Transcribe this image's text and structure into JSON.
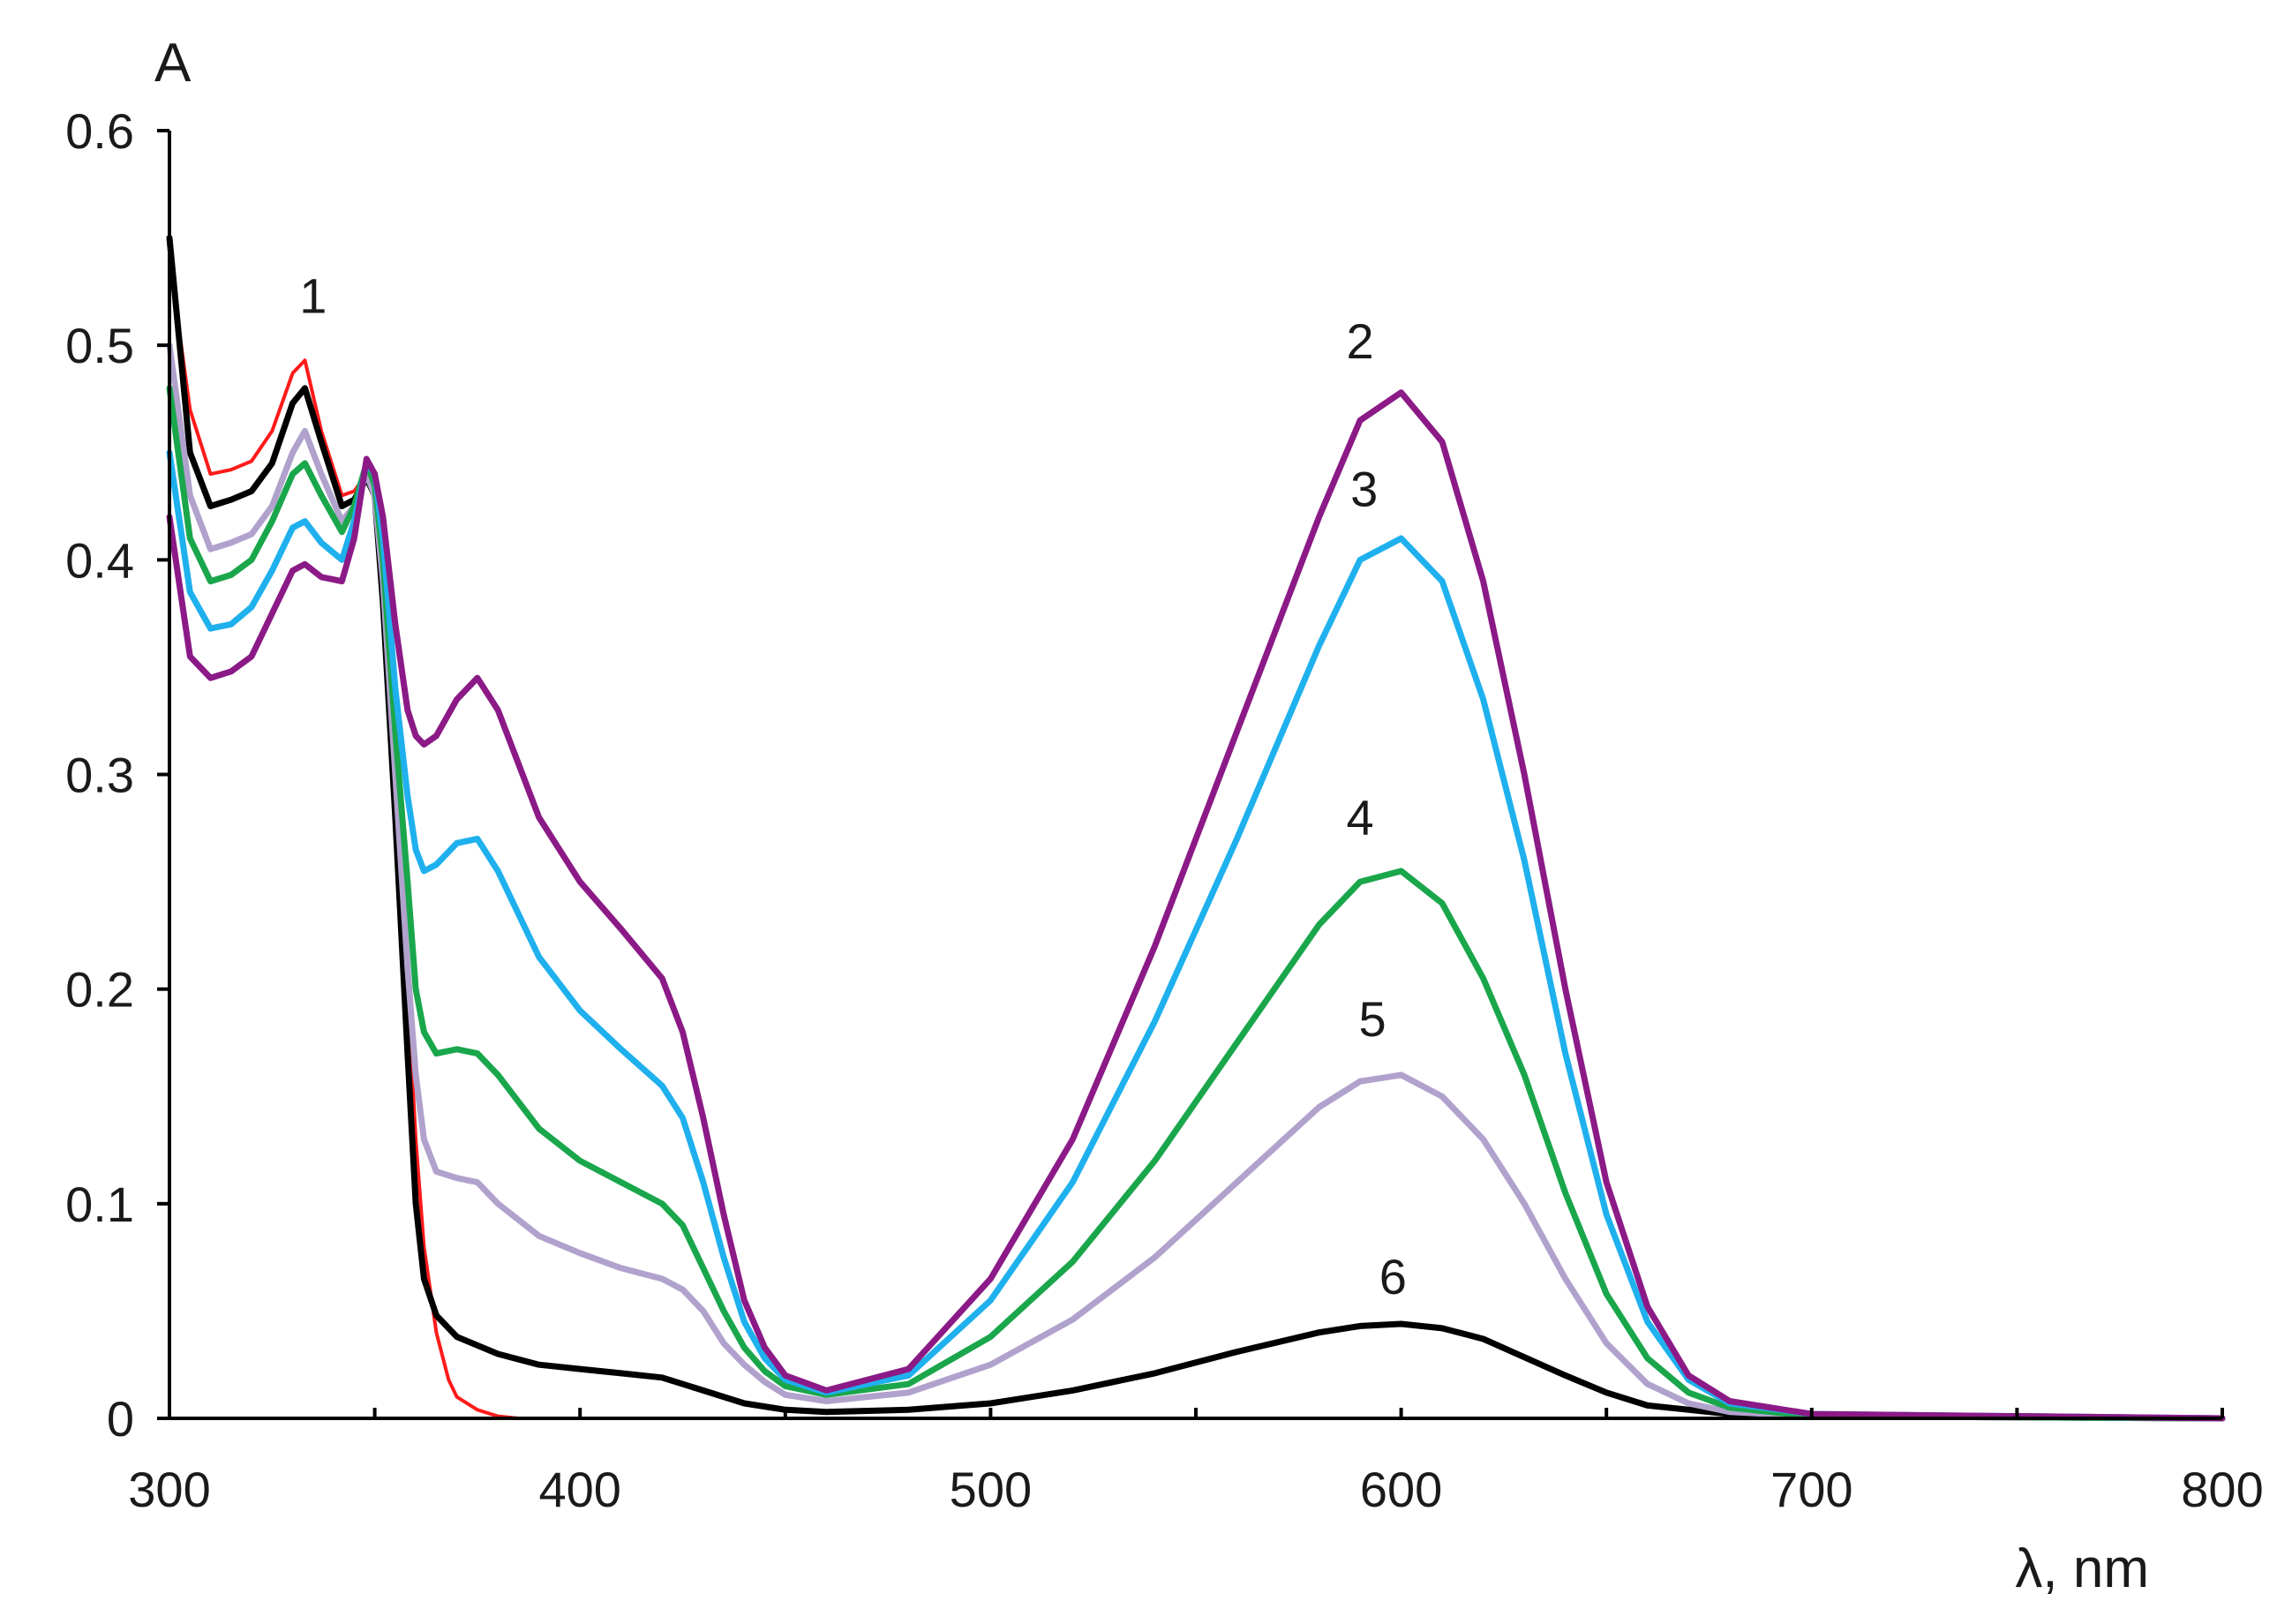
{
  "chart_data": {
    "type": "line",
    "title": "",
    "xlabel": "λ, nm",
    "ylabel": "A",
    "xlim": [
      300,
      800
    ],
    "ylim": [
      0,
      0.6
    ],
    "x_ticks": [
      300,
      400,
      500,
      600,
      700,
      800
    ],
    "x_tick_labels": [
      "300",
      "400",
      "500",
      "600",
      "700",
      "800"
    ],
    "x_minor_ticks": [
      350,
      450,
      550,
      650,
      750
    ],
    "y_ticks": [
      0,
      0.1,
      0.2,
      0.3,
      0.4,
      0.5,
      0.6
    ],
    "y_tick_labels": [
      "0",
      "0.1",
      "0.2",
      "0.3",
      "0.4",
      "0.5",
      "0.6"
    ],
    "grid": false,
    "legend": "none",
    "series": [
      {
        "name": "1",
        "color": "#ff1a1a",
        "label_at": [
          335,
          0.515
        ],
        "x": [
          300,
          305,
          310,
          315,
          320,
          325,
          330,
          333,
          337,
          342,
          345,
          348,
          350,
          352,
          355,
          358,
          360,
          362,
          365,
          368,
          370,
          375,
          380,
          385,
          400,
          500,
          600,
          700,
          800
        ],
        "y": [
          0.54,
          0.47,
          0.44,
          0.442,
          0.446,
          0.46,
          0.487,
          0.493,
          0.46,
          0.43,
          0.432,
          0.44,
          0.435,
          0.39,
          0.3,
          0.2,
          0.13,
          0.08,
          0.04,
          0.018,
          0.01,
          0.004,
          0.001,
          0.0,
          0.0,
          0.0,
          0.0,
          0.0,
          0.0
        ]
      },
      {
        "name": "6",
        "color": "#000000",
        "label_at": [
          598,
          0.058
        ],
        "x": [
          300,
          305,
          310,
          315,
          320,
          325,
          330,
          333,
          337,
          342,
          345,
          348,
          350,
          352,
          355,
          358,
          360,
          362,
          365,
          370,
          380,
          390,
          400,
          410,
          420,
          430,
          440,
          450,
          460,
          480,
          500,
          520,
          540,
          560,
          580,
          590,
          600,
          610,
          620,
          640,
          650,
          660,
          680,
          700,
          800
        ],
        "y": [
          0.55,
          0.45,
          0.425,
          0.428,
          0.432,
          0.445,
          0.473,
          0.48,
          0.455,
          0.425,
          0.428,
          0.438,
          0.43,
          0.38,
          0.28,
          0.17,
          0.1,
          0.065,
          0.048,
          0.038,
          0.03,
          0.025,
          0.023,
          0.021,
          0.019,
          0.013,
          0.007,
          0.004,
          0.003,
          0.004,
          0.007,
          0.013,
          0.021,
          0.031,
          0.04,
          0.043,
          0.044,
          0.042,
          0.037,
          0.02,
          0.012,
          0.006,
          0.002,
          0.001,
          0.0
        ]
      },
      {
        "name": "5",
        "color": "#b0a2cc",
        "label_at": [
          593,
          0.178
        ],
        "x": [
          300,
          305,
          310,
          315,
          320,
          325,
          330,
          333,
          337,
          342,
          345,
          348,
          350,
          352,
          355,
          358,
          360,
          362,
          365,
          370,
          375,
          380,
          390,
          400,
          410,
          420,
          425,
          430,
          435,
          440,
          445,
          450,
          460,
          480,
          500,
          520,
          540,
          560,
          580,
          590,
          600,
          610,
          620,
          630,
          640,
          650,
          660,
          670,
          680,
          700,
          800
        ],
        "y": [
          0.5,
          0.43,
          0.405,
          0.408,
          0.412,
          0.425,
          0.45,
          0.46,
          0.44,
          0.418,
          0.425,
          0.44,
          0.43,
          0.39,
          0.3,
          0.21,
          0.16,
          0.13,
          0.115,
          0.112,
          0.11,
          0.1,
          0.085,
          0.077,
          0.07,
          0.065,
          0.06,
          0.05,
          0.035,
          0.025,
          0.017,
          0.011,
          0.008,
          0.012,
          0.025,
          0.046,
          0.075,
          0.11,
          0.145,
          0.157,
          0.16,
          0.15,
          0.13,
          0.1,
          0.065,
          0.035,
          0.016,
          0.007,
          0.003,
          0.001,
          0.0
        ]
      },
      {
        "name": "4",
        "color": "#1aa64b",
        "label_at": [
          590,
          0.272
        ],
        "x": [
          300,
          305,
          310,
          315,
          320,
          325,
          330,
          333,
          337,
          342,
          345,
          348,
          350,
          352,
          355,
          358,
          360,
          362,
          365,
          370,
          375,
          380,
          390,
          400,
          410,
          420,
          425,
          430,
          435,
          440,
          445,
          450,
          460,
          480,
          500,
          520,
          540,
          560,
          580,
          590,
          600,
          610,
          620,
          630,
          640,
          650,
          660,
          670,
          680,
          700,
          800
        ],
        "y": [
          0.48,
          0.41,
          0.39,
          0.393,
          0.4,
          0.418,
          0.44,
          0.445,
          0.43,
          0.413,
          0.425,
          0.445,
          0.435,
          0.4,
          0.32,
          0.25,
          0.2,
          0.18,
          0.17,
          0.172,
          0.17,
          0.16,
          0.135,
          0.12,
          0.11,
          0.1,
          0.09,
          0.07,
          0.05,
          0.033,
          0.022,
          0.015,
          0.011,
          0.016,
          0.038,
          0.073,
          0.12,
          0.175,
          0.23,
          0.25,
          0.255,
          0.24,
          0.205,
          0.16,
          0.105,
          0.058,
          0.028,
          0.012,
          0.005,
          0.001,
          0.0
        ]
      },
      {
        "name": "3",
        "color": "#1fb0ee",
        "label_at": [
          591,
          0.425
        ],
        "x": [
          300,
          305,
          310,
          315,
          320,
          325,
          330,
          333,
          337,
          342,
          345,
          348,
          350,
          352,
          355,
          358,
          360,
          362,
          365,
          370,
          375,
          380,
          390,
          400,
          410,
          420,
          425,
          430,
          435,
          440,
          445,
          450,
          460,
          480,
          500,
          520,
          540,
          560,
          580,
          590,
          600,
          610,
          620,
          630,
          640,
          650,
          660,
          670,
          680,
          700,
          800
        ],
        "y": [
          0.45,
          0.385,
          0.368,
          0.37,
          0.378,
          0.395,
          0.415,
          0.418,
          0.408,
          0.4,
          0.418,
          0.445,
          0.44,
          0.41,
          0.34,
          0.29,
          0.265,
          0.255,
          0.258,
          0.268,
          0.27,
          0.255,
          0.215,
          0.19,
          0.172,
          0.155,
          0.14,
          0.11,
          0.075,
          0.045,
          0.028,
          0.018,
          0.012,
          0.02,
          0.055,
          0.11,
          0.185,
          0.27,
          0.36,
          0.4,
          0.41,
          0.39,
          0.335,
          0.26,
          0.17,
          0.095,
          0.045,
          0.018,
          0.007,
          0.002,
          0.0
        ]
      },
      {
        "name": "2",
        "color": "#8b1a87",
        "label_at": [
          590,
          0.494
        ],
        "x": [
          300,
          305,
          310,
          315,
          320,
          325,
          330,
          333,
          337,
          342,
          345,
          348,
          350,
          352,
          355,
          358,
          360,
          362,
          365,
          370,
          375,
          380,
          390,
          400,
          410,
          420,
          425,
          430,
          435,
          440,
          445,
          450,
          460,
          480,
          500,
          520,
          540,
          560,
          580,
          590,
          600,
          610,
          620,
          630,
          640,
          650,
          660,
          670,
          680,
          700,
          800
        ],
        "y": [
          0.42,
          0.355,
          0.345,
          0.348,
          0.355,
          0.375,
          0.395,
          0.398,
          0.392,
          0.39,
          0.41,
          0.447,
          0.44,
          0.42,
          0.37,
          0.33,
          0.318,
          0.314,
          0.318,
          0.335,
          0.345,
          0.33,
          0.28,
          0.25,
          0.228,
          0.205,
          0.18,
          0.14,
          0.095,
          0.055,
          0.033,
          0.02,
          0.013,
          0.023,
          0.065,
          0.13,
          0.22,
          0.32,
          0.42,
          0.465,
          0.478,
          0.455,
          0.39,
          0.3,
          0.2,
          0.11,
          0.052,
          0.02,
          0.008,
          0.002,
          0.0
        ]
      }
    ]
  }
}
